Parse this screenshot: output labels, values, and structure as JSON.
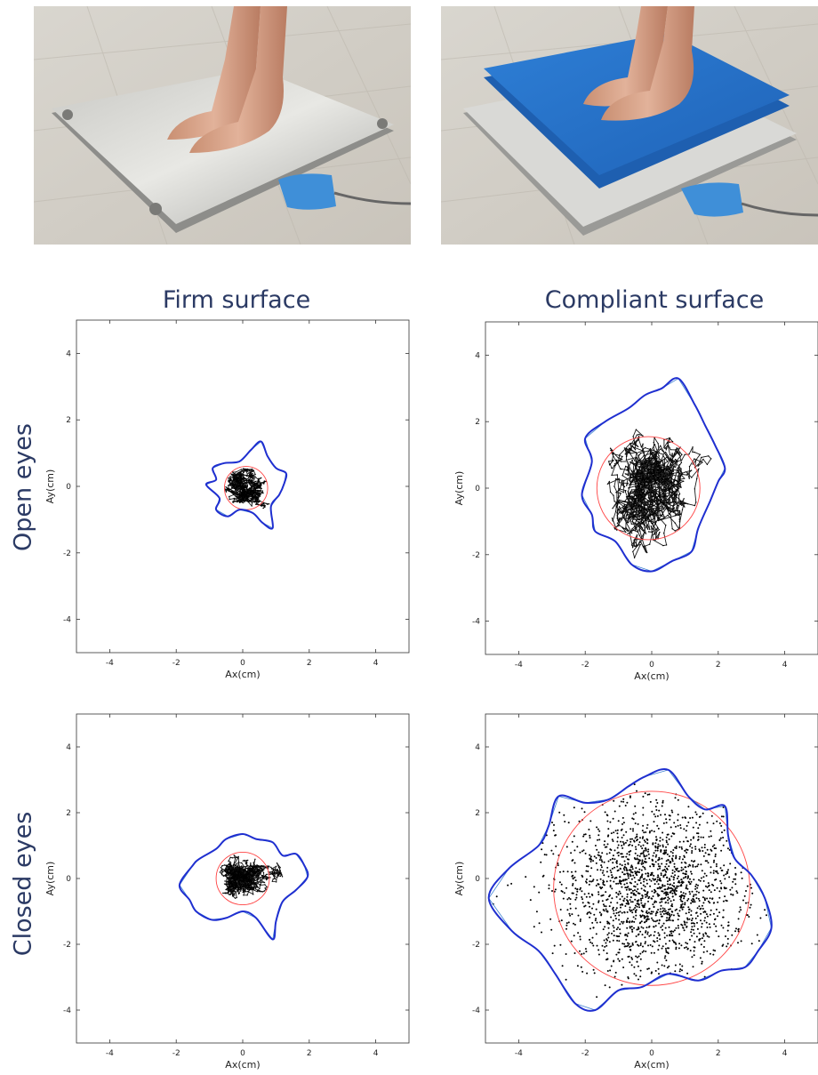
{
  "photos": [
    {
      "name": "firm-surface-photo"
    },
    {
      "name": "compliant-surface-photo"
    }
  ],
  "column_titles": [
    "Firm surface",
    "Compliant surface"
  ],
  "row_titles": [
    "Open eyes",
    "Closed eyes"
  ],
  "colors": {
    "title": "#2b3a64",
    "contour": "#1f2fd0",
    "convex_hull": "#3a7fd0",
    "circle": "#ff4444",
    "points": "#000000"
  },
  "chart_data": [
    {
      "type": "scatter",
      "id": "firm-open",
      "xlabel": "Ax(cm)",
      "ylabel": "Ay(cm)",
      "xlim": [
        -5,
        5
      ],
      "ylim": [
        -5,
        5
      ],
      "xticks": [
        -4,
        -2,
        0,
        2,
        4
      ],
      "yticks": [
        -4,
        -2,
        0,
        2,
        4
      ],
      "grid": false,
      "center": [
        0.1,
        -0.05
      ],
      "spread": [
        0.45,
        0.3
      ],
      "n_points": 900,
      "path": true,
      "circle_radius": 0.65,
      "contour": [
        [
          1.25,
          0.1
        ],
        [
          1.3,
          0.4
        ],
        [
          1.0,
          0.55
        ],
        [
          0.75,
          0.9
        ],
        [
          0.55,
          1.35
        ],
        [
          0.25,
          1.1
        ],
        [
          -0.1,
          0.75
        ],
        [
          -0.55,
          0.7
        ],
        [
          -0.9,
          0.55
        ],
        [
          -0.8,
          0.2
        ],
        [
          -1.1,
          0.05
        ],
        [
          -0.7,
          -0.35
        ],
        [
          -0.8,
          -0.7
        ],
        [
          -0.45,
          -0.9
        ],
        [
          -0.1,
          -0.7
        ],
        [
          0.3,
          -0.8
        ],
        [
          0.6,
          -1.1
        ],
        [
          0.9,
          -1.25
        ],
        [
          0.85,
          -0.6
        ],
        [
          1.1,
          -0.25
        ]
      ]
    },
    {
      "type": "scatter",
      "id": "compliant-open",
      "xlabel": "Ax(cm)",
      "ylabel": "Ay(cm)",
      "xlim": [
        -5,
        5
      ],
      "ylim": [
        -5,
        5
      ],
      "xticks": [
        -4,
        -2,
        0,
        2,
        4
      ],
      "yticks": [
        -4,
        -2,
        0,
        2,
        4
      ],
      "grid": false,
      "center": [
        -0.1,
        0.0
      ],
      "spread": [
        0.75,
        1.05
      ],
      "n_points": 1400,
      "path": true,
      "circle_radius": 1.55,
      "contour": [
        [
          2.2,
          0.6
        ],
        [
          1.9,
          1.3
        ],
        [
          1.6,
          1.9
        ],
        [
          1.3,
          2.5
        ],
        [
          0.8,
          3.3
        ],
        [
          0.3,
          3.0
        ],
        [
          -0.2,
          2.8
        ],
        [
          -0.7,
          2.4
        ],
        [
          -1.4,
          2.0
        ],
        [
          -2.0,
          1.5
        ],
        [
          -1.8,
          0.8
        ],
        [
          -2.1,
          -0.2
        ],
        [
          -1.8,
          -0.8
        ],
        [
          -1.7,
          -1.3
        ],
        [
          -1.1,
          -1.6
        ],
        [
          -0.6,
          -2.3
        ],
        [
          0.0,
          -2.5
        ],
        [
          0.6,
          -2.2
        ],
        [
          1.2,
          -1.9
        ],
        [
          1.4,
          -1.2
        ],
        [
          1.75,
          -0.4
        ],
        [
          2.0,
          0.2
        ]
      ]
    },
    {
      "type": "scatter",
      "id": "firm-closed",
      "xlabel": "Ax(cm)",
      "ylabel": "Ay(cm)",
      "xlim": [
        -5,
        5
      ],
      "ylim": [
        -5,
        5
      ],
      "xticks": [
        -4,
        -2,
        0,
        2,
        4
      ],
      "yticks": [
        -4,
        -2,
        0,
        2,
        4
      ],
      "grid": false,
      "center": [
        0.0,
        0.0
      ],
      "spread": [
        0.5,
        0.42
      ],
      "n_points": 1100,
      "path": true,
      "circle_radius": 0.8,
      "contour": [
        [
          1.85,
          0.4
        ],
        [
          1.6,
          0.75
        ],
        [
          1.2,
          0.7
        ],
        [
          0.9,
          1.1
        ],
        [
          0.4,
          1.2
        ],
        [
          0.0,
          1.35
        ],
        [
          -0.5,
          1.2
        ],
        [
          -0.8,
          0.9
        ],
        [
          -1.3,
          0.6
        ],
        [
          -1.5,
          0.4
        ],
        [
          -1.9,
          -0.2
        ],
        [
          -1.6,
          -0.65
        ],
        [
          -1.4,
          -1.0
        ],
        [
          -0.95,
          -1.25
        ],
        [
          -0.5,
          -1.2
        ],
        [
          0.0,
          -1.0
        ],
        [
          0.4,
          -1.2
        ],
        [
          0.9,
          -1.85
        ],
        [
          1.0,
          -1.3
        ],
        [
          1.2,
          -0.7
        ],
        [
          1.6,
          -0.35
        ],
        [
          1.95,
          0.05
        ]
      ]
    },
    {
      "type": "scatter",
      "id": "compliant-closed",
      "xlabel": "Ax(cm)",
      "ylabel": "Ay(cm)",
      "xlim": [
        -5,
        5
      ],
      "ylim": [
        -5,
        5
      ],
      "xticks": [
        -4,
        -2,
        0,
        2,
        4
      ],
      "yticks": [
        -4,
        -2,
        0,
        2,
        4
      ],
      "grid": false,
      "center": [
        0.0,
        -0.3
      ],
      "spread": [
        1.5,
        1.35
      ],
      "n_points": 1800,
      "path": false,
      "circle_radius": 2.95,
      "contour": [
        [
          3.6,
          -1.5
        ],
        [
          3.4,
          -0.6
        ],
        [
          3.0,
          0.1
        ],
        [
          2.5,
          0.6
        ],
        [
          2.3,
          1.3
        ],
        [
          2.2,
          2.2
        ],
        [
          1.6,
          2.1
        ],
        [
          1.1,
          2.5
        ],
        [
          0.5,
          3.3
        ],
        [
          -0.2,
          3.1
        ],
        [
          -0.7,
          2.8
        ],
        [
          -1.3,
          2.4
        ],
        [
          -2.0,
          2.3
        ],
        [
          -2.8,
          2.5
        ],
        [
          -3.1,
          1.6
        ],
        [
          -3.4,
          1.0
        ],
        [
          -4.3,
          0.3
        ],
        [
          -4.9,
          -0.6
        ],
        [
          -4.2,
          -1.6
        ],
        [
          -3.4,
          -2.2
        ],
        [
          -2.9,
          -2.9
        ],
        [
          -2.3,
          -3.8
        ],
        [
          -1.7,
          -4.0
        ],
        [
          -1.0,
          -3.4
        ],
        [
          -0.3,
          -3.3
        ],
        [
          0.5,
          -2.9
        ],
        [
          1.4,
          -3.1
        ],
        [
          2.1,
          -2.8
        ],
        [
          2.8,
          -2.7
        ],
        [
          3.2,
          -2.2
        ]
      ]
    }
  ]
}
